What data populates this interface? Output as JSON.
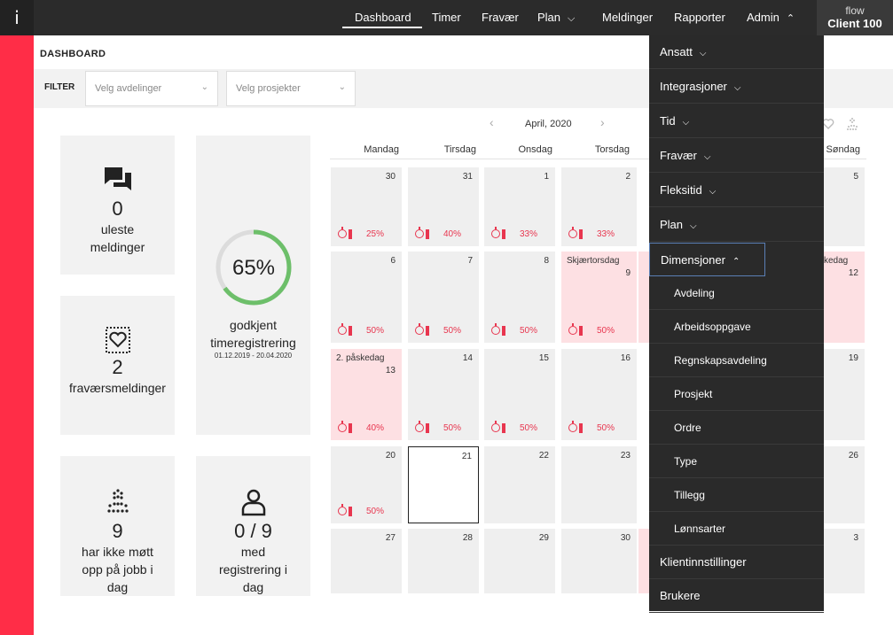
{
  "app": {
    "info_label": "i",
    "brand_line1": "flow",
    "brand_line2": "Client 100"
  },
  "nav": {
    "items": [
      {
        "label": "Dashboard"
      },
      {
        "label": "Timer"
      },
      {
        "label": "Fravær"
      },
      {
        "label": "Plan"
      },
      {
        "label": "Meldinger"
      },
      {
        "label": "Rapporter"
      },
      {
        "label": "Admin"
      }
    ]
  },
  "page": {
    "title": "DASHBOARD"
  },
  "filter": {
    "label": "FILTER",
    "departments_placeholder": "Velg avdelinger",
    "projects_placeholder": "Velg prosjekter"
  },
  "tiles": {
    "messages": {
      "count": "0",
      "label_line1": "uleste",
      "label_line2": "meldinger"
    },
    "approved": {
      "percent": "65%",
      "progress": 0.65,
      "label_line1": "godkjent",
      "label_line2": "timeregistrering",
      "range": "01.12.2019 - 20.04.2020"
    },
    "absence": {
      "count": "2",
      "label": "fraværsmeldinger"
    },
    "not_present": {
      "count": "9",
      "label_line1": "har ikke møtt",
      "label_line2": "opp på jobb i",
      "label_line3": "dag"
    },
    "registered": {
      "count": "0 / 9",
      "label_line1": "med",
      "label_line2": "registrering i",
      "label_line3": "dag"
    }
  },
  "calendar": {
    "month": "April, 2020",
    "days": [
      "Mandag",
      "Tirsdag",
      "Onsdag",
      "Torsdag",
      "Søndag"
    ],
    "cells": [
      {
        "d": "30",
        "pct": "25%"
      },
      {
        "d": "31",
        "pct": "40%"
      },
      {
        "d": "1",
        "pct": "33%"
      },
      {
        "d": "2",
        "pct": "33%"
      },
      {
        "d": "6",
        "pct": "50%"
      },
      {
        "d": "7",
        "pct": "50%"
      },
      {
        "d": "8",
        "pct": "50%"
      },
      {
        "d": "9",
        "holiday": "Skjærtorsdag",
        "pct": "50%"
      },
      {
        "d": "13",
        "holiday": "2. påskedag",
        "pct": "40%"
      },
      {
        "d": "14",
        "pct": "50%"
      },
      {
        "d": "15",
        "pct": "50%"
      },
      {
        "d": "16",
        "pct": "50%"
      },
      {
        "d": "20",
        "pct": "50%"
      },
      {
        "d": "21"
      },
      {
        "d": "22"
      },
      {
        "d": "23"
      },
      {
        "d": "27"
      },
      {
        "d": "28"
      },
      {
        "d": "29"
      },
      {
        "d": "30"
      }
    ],
    "sunday_cells": [
      {
        "d": "5"
      },
      {
        "d": "12",
        "holiday": "kedag"
      },
      {
        "d": "19"
      },
      {
        "d": "26"
      },
      {
        "d": "3"
      }
    ]
  },
  "admin_menu": {
    "items": [
      {
        "label": "Ansatt"
      },
      {
        "label": "Integrasjoner"
      },
      {
        "label": "Tid"
      },
      {
        "label": "Fravær"
      },
      {
        "label": "Fleksitid"
      },
      {
        "label": "Plan"
      },
      {
        "label": "Dimensjoner"
      },
      {
        "label": "Avdeling"
      },
      {
        "label": "Arbeidsoppgave"
      },
      {
        "label": "Regnskapsavdeling"
      },
      {
        "label": "Prosjekt"
      },
      {
        "label": "Ordre"
      },
      {
        "label": "Type"
      },
      {
        "label": "Tillegg"
      },
      {
        "label": "Lønnsarter"
      },
      {
        "label": "Klientinnstillinger"
      },
      {
        "label": "Brukere"
      }
    ]
  },
  "colors": {
    "accent": "#ff2d47",
    "nav_bg": "#2b2b2b",
    "progress_green": "#6dbf6a",
    "holiday_bg": "#fde0e3"
  }
}
